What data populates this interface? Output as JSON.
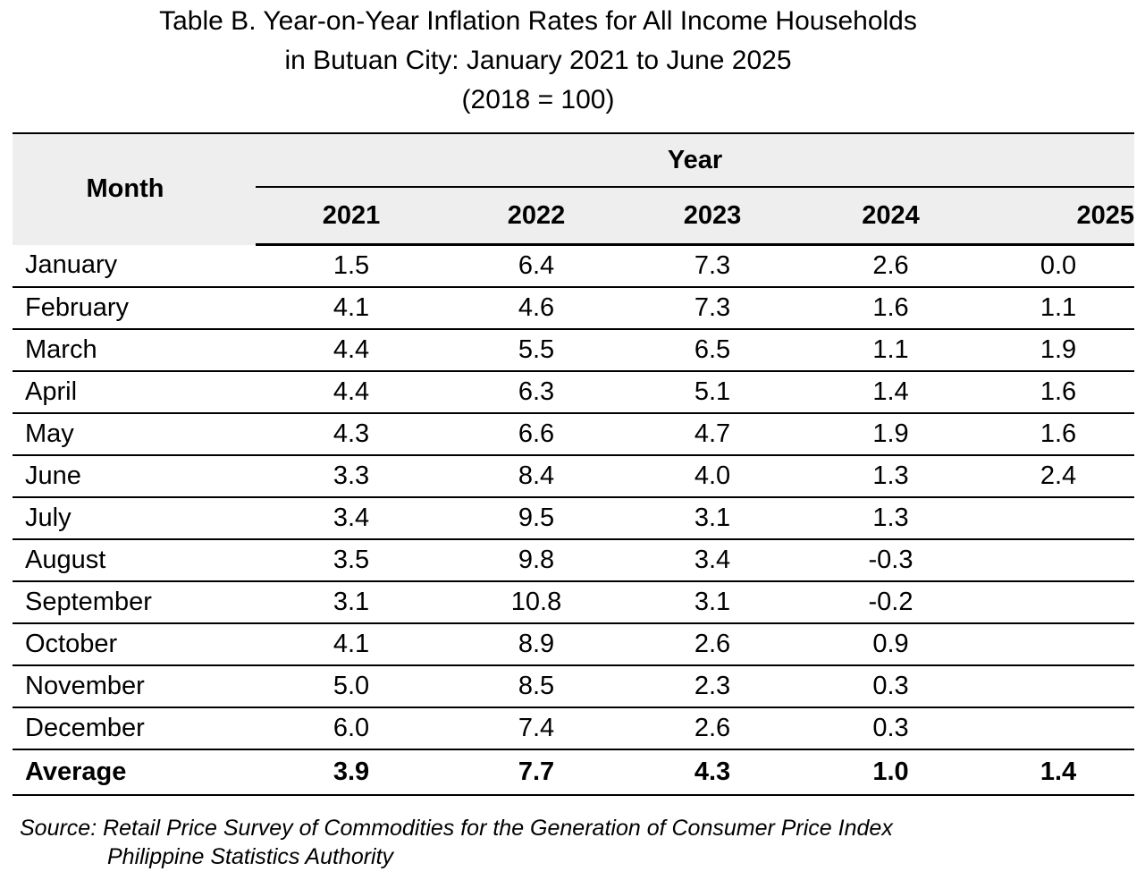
{
  "title": {
    "line1": "Table B. Year-on-Year Inflation Rates for All Income Households",
    "line2": "in Butuan City: January 2021 to June 2025",
    "line3": "(2018 = 100)"
  },
  "table": {
    "month_header": "Month",
    "year_header": "Year",
    "years": [
      "2021",
      "2022",
      "2023",
      "2024",
      "2025"
    ],
    "rows": [
      {
        "month": "January",
        "values": [
          "1.5",
          "6.4",
          "7.3",
          "2.6",
          "0.0"
        ]
      },
      {
        "month": "February",
        "values": [
          "4.1",
          "4.6",
          "7.3",
          "1.6",
          "1.1"
        ]
      },
      {
        "month": "March",
        "values": [
          "4.4",
          "5.5",
          "6.5",
          "1.1",
          "1.9"
        ]
      },
      {
        "month": "April",
        "values": [
          "4.4",
          "6.3",
          "5.1",
          "1.4",
          "1.6"
        ]
      },
      {
        "month": "May",
        "values": [
          "4.3",
          "6.6",
          "4.7",
          "1.9",
          "1.6"
        ]
      },
      {
        "month": "June",
        "values": [
          "3.3",
          "8.4",
          "4.0",
          "1.3",
          "2.4"
        ]
      },
      {
        "month": "July",
        "values": [
          "3.4",
          "9.5",
          "3.1",
          "1.3",
          ""
        ]
      },
      {
        "month": "August",
        "values": [
          "3.5",
          "9.8",
          "3.4",
          "-0.3",
          ""
        ]
      },
      {
        "month": "September",
        "values": [
          "3.1",
          "10.8",
          "3.1",
          "-0.2",
          ""
        ]
      },
      {
        "month": "October",
        "values": [
          "4.1",
          "8.9",
          "2.6",
          "0.9",
          ""
        ]
      },
      {
        "month": "November",
        "values": [
          "5.0",
          "8.5",
          "2.3",
          "0.3",
          ""
        ]
      },
      {
        "month": "December",
        "values": [
          "6.0",
          "7.4",
          "2.6",
          "0.3",
          ""
        ]
      }
    ],
    "average": {
      "label": "Average",
      "values": [
        "3.9",
        "7.7",
        "4.3",
        "1.0",
        "1.4"
      ]
    }
  },
  "source": {
    "line1": "Source: Retail Price Survey of Commodities for the Generation of Consumer Price Index",
    "line2": "Philippine Statistics Authority"
  }
}
